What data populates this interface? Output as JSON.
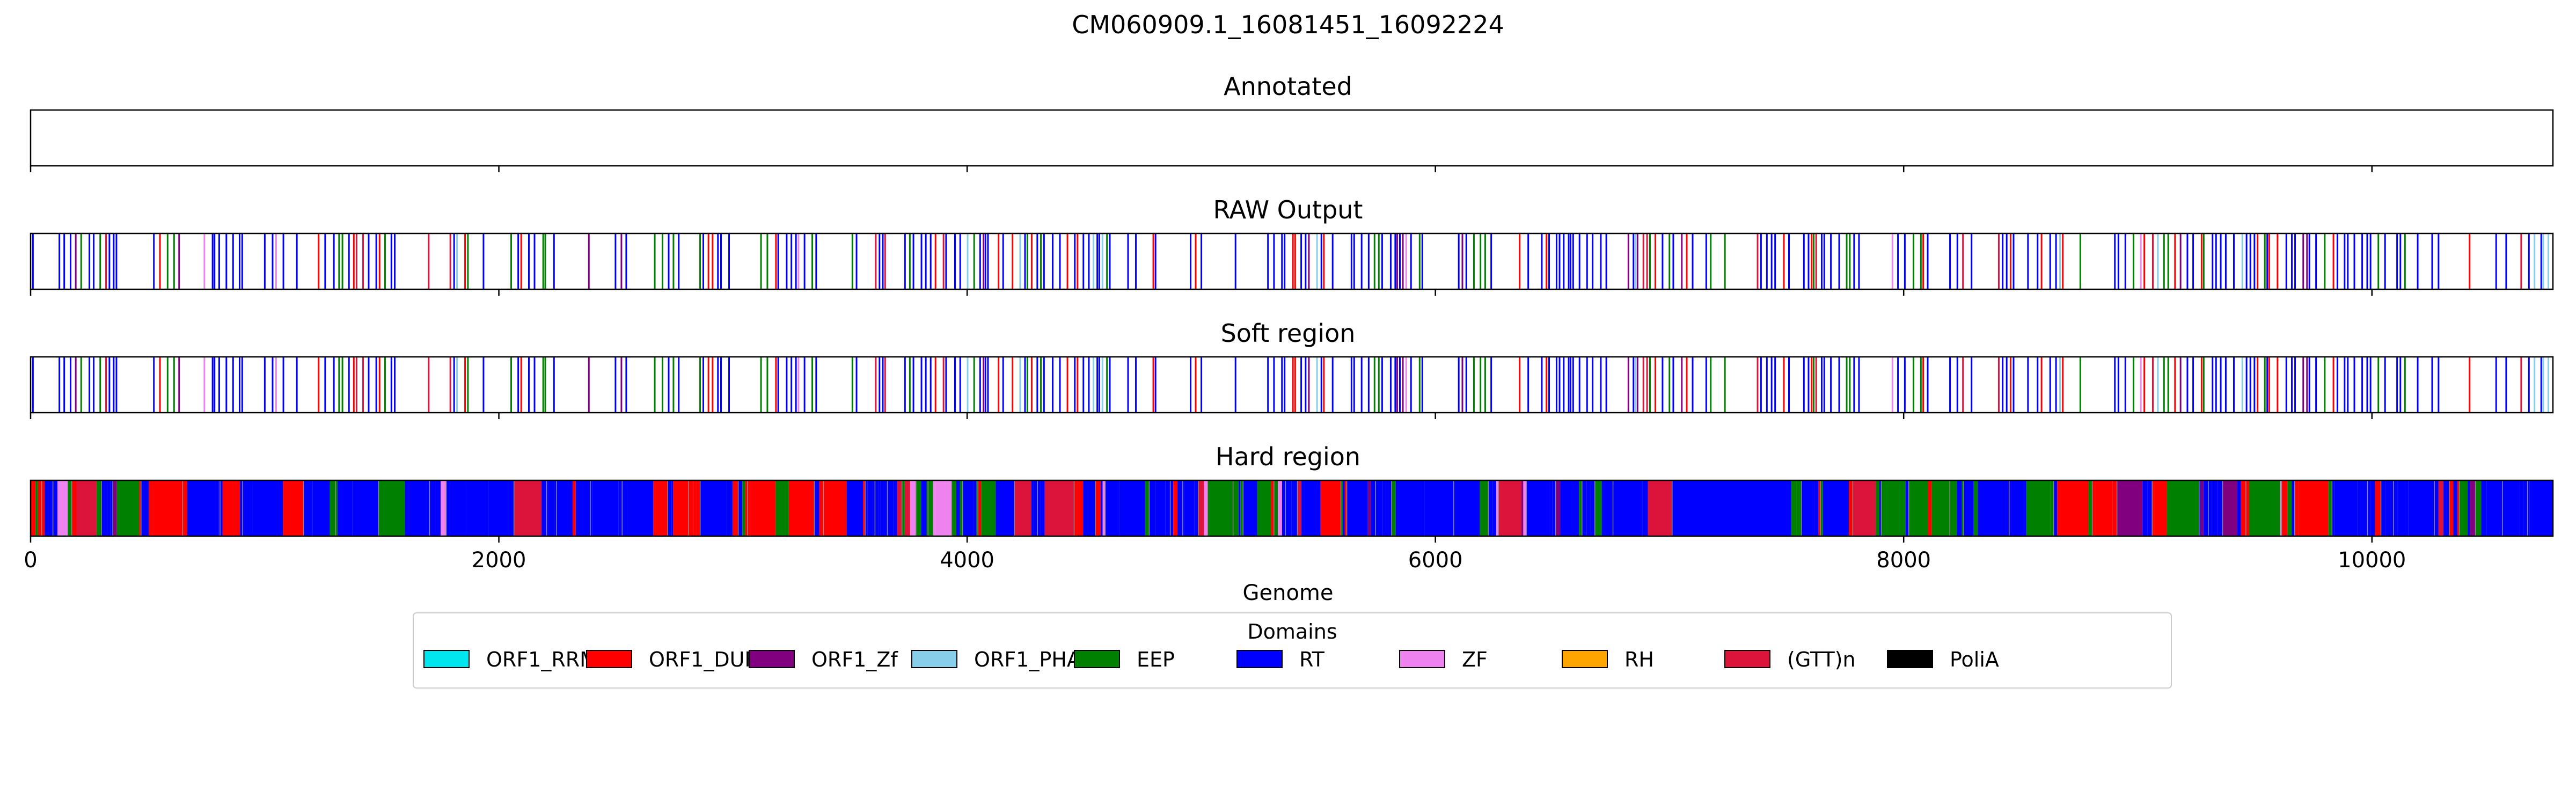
{
  "chart_data": {
    "type": "genome-track",
    "title": "CM060909.1_16081451_16092224",
    "xlabel": "Genome",
    "xlim": [
      0,
      10773
    ],
    "xticks": [
      0,
      2000,
      4000,
      6000,
      8000,
      10000
    ],
    "xtick_labels": [
      "0",
      "2000",
      "4000",
      "6000",
      "8000",
      "10000"
    ],
    "grid": false,
    "tracks": [
      {
        "name": "Annotated",
        "pattern": "empty"
      },
      {
        "name": "RAW Output",
        "pattern": "sparse-lines"
      },
      {
        "name": "Soft region",
        "pattern": "sparse-lines"
      },
      {
        "name": "Hard region",
        "pattern": "dense-blocks"
      }
    ],
    "legend": {
      "title": "Domains",
      "placement": "bottom-center",
      "items": [
        {
          "label": "ORF1_RRM",
          "color": "#00e5ee"
        },
        {
          "label": "ORF1_DUF",
          "color": "#ff0000"
        },
        {
          "label": "ORF1_Zf",
          "color": "#800080"
        },
        {
          "label": "ORF1_PHA",
          "color": "#87ceeb"
        },
        {
          "label": "EEP",
          "color": "#008000"
        },
        {
          "label": "RT",
          "color": "#0000ff"
        },
        {
          "label": "ZF",
          "color": "#ee82ee"
        },
        {
          "label": "RH",
          "color": "#ffa500"
        },
        {
          "label": "(GTT)n",
          "color": "#dc143c"
        },
        {
          "label": "PoliA",
          "color": "#000000"
        }
      ]
    }
  }
}
